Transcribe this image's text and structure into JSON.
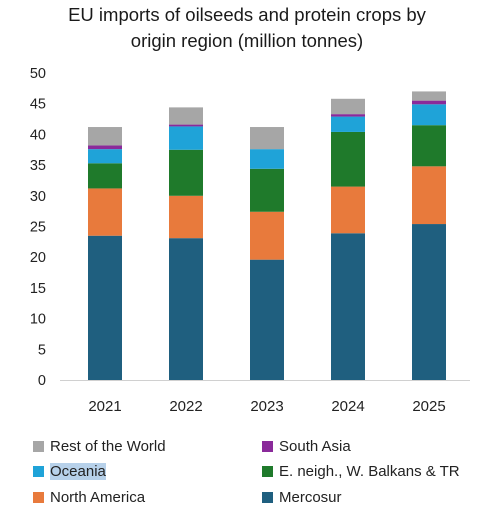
{
  "chart_data": {
    "type": "bar",
    "stacked": true,
    "title_lines": [
      "EU imports of oilseeds and protein crops by",
      "origin region (million tonnes)"
    ],
    "categories": [
      "2021",
      "2022",
      "2023",
      "2024",
      "2025"
    ],
    "ylim": [
      0,
      50
    ],
    "yticks": [
      0,
      5,
      10,
      15,
      20,
      25,
      30,
      35,
      40,
      45,
      50
    ],
    "series": [
      {
        "name": "Mercosur",
        "color": "#1f5f7f",
        "values": [
          23.5,
          23.1,
          19.6,
          23.9,
          25.4
        ]
      },
      {
        "name": "North America",
        "color": "#e87a3c",
        "values": [
          7.7,
          6.9,
          7.8,
          7.6,
          9.4
        ]
      },
      {
        "name": "E. neigh., W. Balkans & TR",
        "color": "#1f7a2b",
        "values": [
          4.1,
          7.5,
          7.0,
          8.9,
          6.7
        ]
      },
      {
        "name": "Oceania",
        "color": "#1fa3d8",
        "values": [
          2.3,
          3.8,
          3.2,
          2.5,
          3.4
        ]
      },
      {
        "name": "South Asia",
        "color": "#8a2a9a",
        "values": [
          0.6,
          0.3,
          0.0,
          0.4,
          0.6
        ]
      },
      {
        "name": "Rest of the World",
        "color": "#a6a6a6",
        "values": [
          3.0,
          2.8,
          3.6,
          2.5,
          1.5
        ]
      }
    ],
    "legend": {
      "placement": "bottom",
      "highlighted": "Oceania"
    }
  }
}
